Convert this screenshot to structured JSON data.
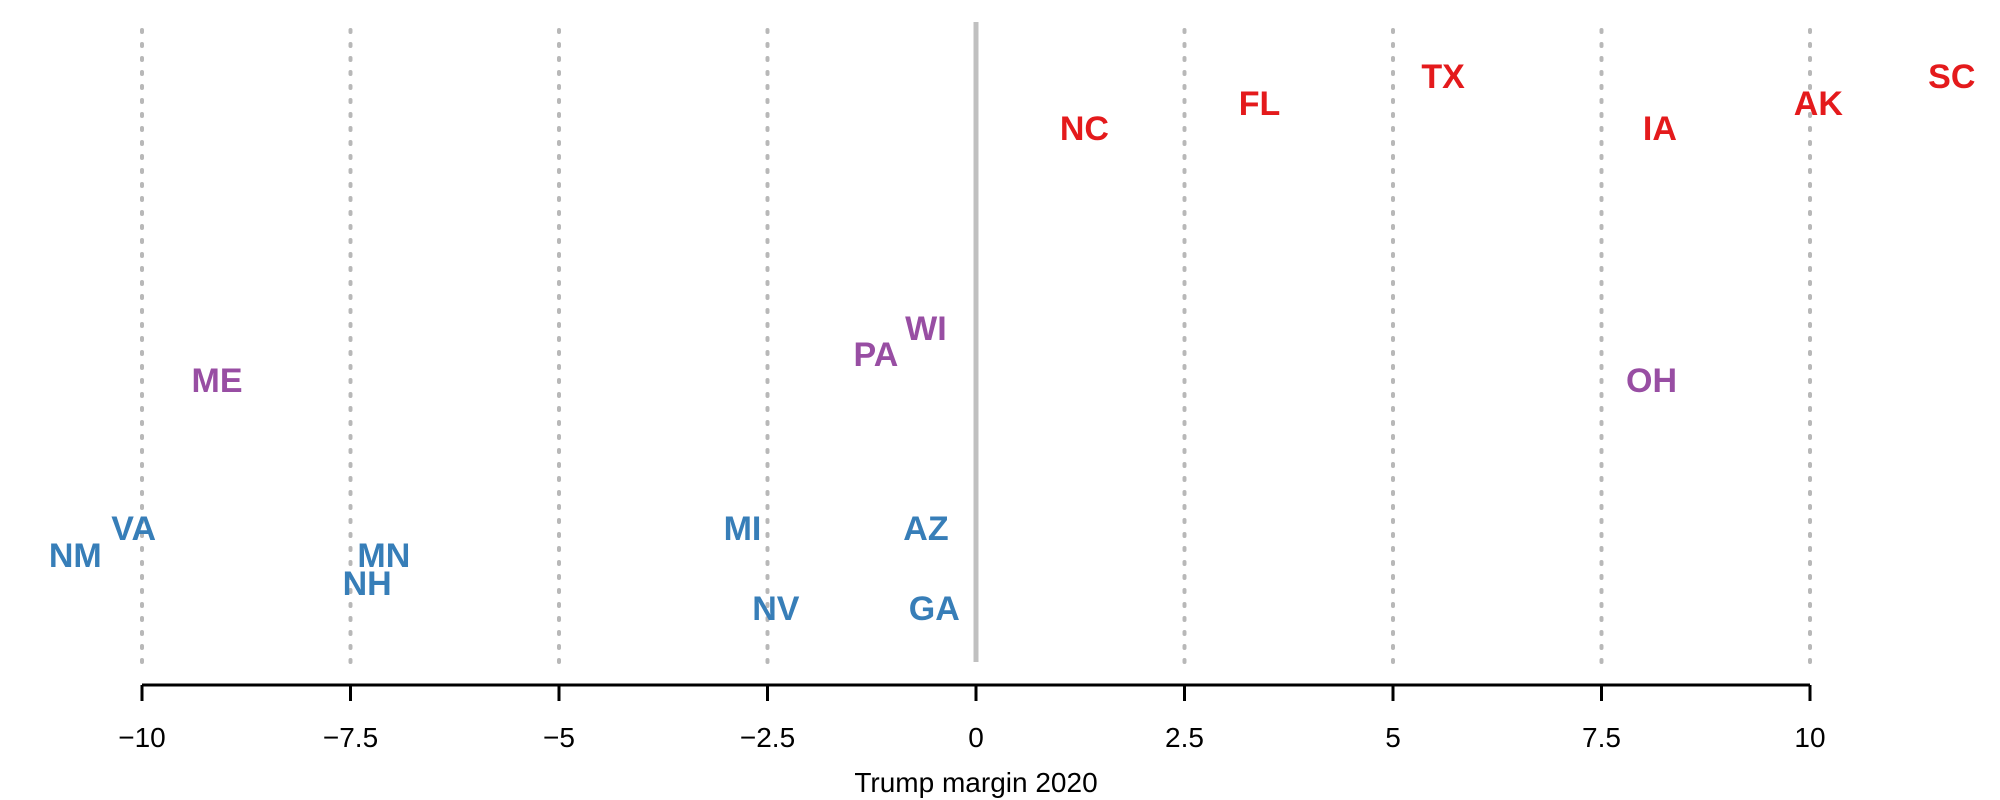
{
  "chart_data": {
    "type": "scatter",
    "xlabel": "Trump margin 2020",
    "ylabel": "",
    "xlim": [
      -10,
      10
    ],
    "x_ticks": [
      -10,
      -7.5,
      -5,
      -2.5,
      0,
      2.5,
      5,
      7.5,
      10
    ],
    "x_tick_labels": [
      "−10",
      "−7.5",
      "−5",
      "−2.5",
      "0",
      "2.5",
      "5",
      "7.5",
      "10"
    ],
    "grid": "vertical dotted at ticks",
    "zero_line": true,
    "groups": [
      {
        "color": "#e41a1c"
      },
      {
        "color": "#984ea3"
      },
      {
        "color": "#377eb8"
      }
    ],
    "points": [
      {
        "label": "NC",
        "x": 1.3,
        "group": 0
      },
      {
        "label": "FL",
        "x": 3.4,
        "group": 0
      },
      {
        "label": "TX",
        "x": 5.6,
        "group": 0
      },
      {
        "label": "IA",
        "x": 8.2,
        "group": 0
      },
      {
        "label": "AK",
        "x": 10.1,
        "group": 0
      },
      {
        "label": "SC",
        "x": 11.7,
        "group": 0
      },
      {
        "label": "ME",
        "x": -9.1,
        "group": 1
      },
      {
        "label": "PA",
        "x": -1.2,
        "group": 1
      },
      {
        "label": "WI",
        "x": -0.6,
        "group": 1
      },
      {
        "label": "OH",
        "x": 8.1,
        "group": 1
      },
      {
        "label": "NM",
        "x": -10.8,
        "group": 2
      },
      {
        "label": "VA",
        "x": -10.1,
        "group": 2
      },
      {
        "label": "MN",
        "x": -7.1,
        "group": 2
      },
      {
        "label": "NH",
        "x": -7.3,
        "group": 2
      },
      {
        "label": "MI",
        "x": -2.8,
        "group": 2
      },
      {
        "label": "NV",
        "x": -2.4,
        "group": 2
      },
      {
        "label": "AZ",
        "x": -0.6,
        "group": 2
      },
      {
        "label": "GA",
        "x": -0.5,
        "group": 2
      }
    ]
  }
}
